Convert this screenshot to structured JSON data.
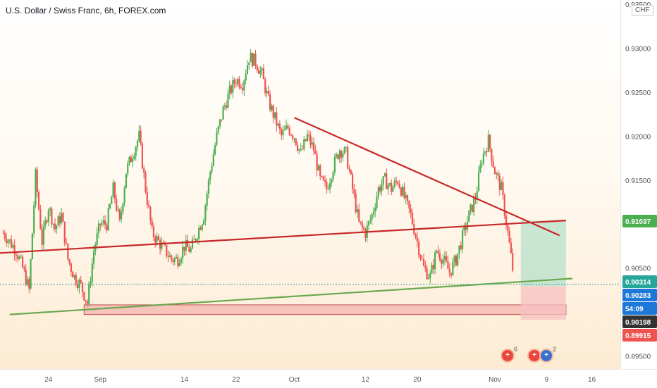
{
  "title": "U.S. Dollar / Swiss Franc, 6h, FOREX.com",
  "currency": "CHF",
  "colors": {
    "up": "#26a69a",
    "up_candle": "#4caf50",
    "down": "#ef5350",
    "trendline_red": "#c62828",
    "trendline_green": "#6aa84f",
    "support_zone": "#f4a5a5",
    "profit_zone": "#bfe3cf",
    "loss_zone": "#f7c0c0"
  },
  "events": [
    {
      "icon": "flag-swiss-icon",
      "count": "6"
    },
    {
      "icon": "flag-swiss-icon",
      "count": ""
    },
    {
      "icon": "flag-us-icon",
      "count": "2"
    }
  ],
  "chart_data": {
    "type": "candlestick",
    "title": "U.S. Dollar / Swiss Franc, 6h, FOREX.com",
    "ylim": [
      0.8935,
      0.9355
    ],
    "y_ticks": [
      "0.89500",
      "0.90500",
      "0.91500",
      "0.92000",
      "0.92500",
      "0.93000",
      "0.93500"
    ],
    "x_ticks": [
      {
        "label": "24",
        "day": 24
      },
      {
        "label": "Sep",
        "day": 32
      },
      {
        "label": "14",
        "day": 45
      },
      {
        "label": "22",
        "day": 53
      },
      {
        "label": "Oct",
        "day": 62
      },
      {
        "label": "12",
        "day": 73
      },
      {
        "label": "20",
        "day": 81
      },
      {
        "label": "Nov",
        "day": 93
      },
      {
        "label": "9",
        "day": 101
      },
      {
        "label": "16",
        "day": 108
      }
    ],
    "x_range_days": [
      16.5,
      112.4
    ],
    "price_labels": [
      {
        "value": "0.91037",
        "kind": "target"
      },
      {
        "value": "0.90314",
        "kind": "last"
      },
      {
        "value": "0.90283",
        "kind": "current"
      },
      {
        "value": "54:09",
        "kind": "countdown"
      },
      {
        "value": "0.90198",
        "kind": "dark"
      },
      {
        "value": "0.89915",
        "kind": "stop"
      }
    ],
    "trendlines": [
      {
        "name": "descending resistance",
        "color": "red",
        "points": [
          [
            62,
            0.9221
          ],
          [
            103,
            0.9087
          ]
        ]
      },
      {
        "name": "rising support (red)",
        "color": "red",
        "points": [
          [
            16.5,
            0.9067
          ],
          [
            104,
            0.9104
          ]
        ]
      },
      {
        "name": "rising support (green)",
        "color": "green",
        "points": [
          [
            18,
            0.8997
          ],
          [
            105,
            0.9038
          ]
        ]
      }
    ],
    "zones": [
      {
        "name": "support zone",
        "day_range": [
          29.5,
          104
        ],
        "price_range": [
          0.8997,
          0.9008
        ]
      },
      {
        "name": "profit zone",
        "day_range": [
          97,
          104
        ],
        "price_range": [
          0.9029,
          0.9104
        ]
      },
      {
        "name": "loss zone",
        "day_range": [
          97,
          104
        ],
        "price_range": [
          0.8991,
          0.9029
        ]
      }
    ],
    "last_price": 0.90314,
    "series": [
      {
        "d": 17,
        "c": 0.909
      },
      {
        "d": 19,
        "c": 0.907
      },
      {
        "d": 20,
        "c": 0.905
      },
      {
        "d": 21,
        "c": 0.9025
      },
      {
        "d": 22,
        "c": 0.9155
      },
      {
        "d": 23,
        "c": 0.908
      },
      {
        "d": 24,
        "c": 0.912
      },
      {
        "d": 25,
        "c": 0.9095
      },
      {
        "d": 26,
        "c": 0.911
      },
      {
        "d": 27,
        "c": 0.906
      },
      {
        "d": 28,
        "c": 0.904
      },
      {
        "d": 29,
        "c": 0.903
      },
      {
        "d": 30,
        "c": 0.901
      },
      {
        "d": 31,
        "c": 0.907
      },
      {
        "d": 32,
        "c": 0.91
      },
      {
        "d": 33,
        "c": 0.91
      },
      {
        "d": 34,
        "c": 0.914
      },
      {
        "d": 35,
        "c": 0.91
      },
      {
        "d": 36,
        "c": 0.916
      },
      {
        "d": 37,
        "c": 0.918
      },
      {
        "d": 38,
        "c": 0.92
      },
      {
        "d": 39,
        "c": 0.914
      },
      {
        "d": 40,
        "c": 0.909
      },
      {
        "d": 41,
        "c": 0.908
      },
      {
        "d": 42,
        "c": 0.907
      },
      {
        "d": 43,
        "c": 0.906
      },
      {
        "d": 44,
        "c": 0.906
      },
      {
        "d": 45,
        "c": 0.9075
      },
      {
        "d": 46,
        "c": 0.907
      },
      {
        "d": 47,
        "c": 0.909
      },
      {
        "d": 48,
        "c": 0.911
      },
      {
        "d": 49,
        "c": 0.916
      },
      {
        "d": 50,
        "c": 0.92
      },
      {
        "d": 51,
        "c": 0.923
      },
      {
        "d": 52,
        "c": 0.925
      },
      {
        "d": 53,
        "c": 0.9265
      },
      {
        "d": 54,
        "c": 0.926
      },
      {
        "d": 55,
        "c": 0.929
      },
      {
        "d": 56,
        "c": 0.9285
      },
      {
        "d": 57,
        "c": 0.927
      },
      {
        "d": 58,
        "c": 0.924
      },
      {
        "d": 59,
        "c": 0.922
      },
      {
        "d": 60,
        "c": 0.92
      },
      {
        "d": 61,
        "c": 0.921
      },
      {
        "d": 62,
        "c": 0.92
      },
      {
        "d": 63,
        "c": 0.918
      },
      {
        "d": 64,
        "c": 0.92
      },
      {
        "d": 65,
        "c": 0.9185
      },
      {
        "d": 66,
        "c": 0.915
      },
      {
        "d": 67,
        "c": 0.914
      },
      {
        "d": 68,
        "c": 0.9165
      },
      {
        "d": 69,
        "c": 0.9185
      },
      {
        "d": 70,
        "c": 0.918
      },
      {
        "d": 71,
        "c": 0.914
      },
      {
        "d": 72,
        "c": 0.91
      },
      {
        "d": 73,
        "c": 0.909
      },
      {
        "d": 74,
        "c": 0.911
      },
      {
        "d": 75,
        "c": 0.914
      },
      {
        "d": 76,
        "c": 0.915
      },
      {
        "d": 77,
        "c": 0.914
      },
      {
        "d": 78,
        "c": 0.915
      },
      {
        "d": 79,
        "c": 0.913
      },
      {
        "d": 80,
        "c": 0.911
      },
      {
        "d": 81,
        "c": 0.908
      },
      {
        "d": 82,
        "c": 0.905
      },
      {
        "d": 83,
        "c": 0.904
      },
      {
        "d": 84,
        "c": 0.907
      },
      {
        "d": 85,
        "c": 0.906
      },
      {
        "d": 86,
        "c": 0.9045
      },
      {
        "d": 87,
        "c": 0.906
      },
      {
        "d": 88,
        "c": 0.9085
      },
      {
        "d": 89,
        "c": 0.911
      },
      {
        "d": 90,
        "c": 0.913
      },
      {
        "d": 91,
        "c": 0.9175
      },
      {
        "d": 92,
        "c": 0.9195
      },
      {
        "d": 93,
        "c": 0.916
      },
      {
        "d": 94,
        "c": 0.914
      },
      {
        "d": 95,
        "c": 0.909
      },
      {
        "d": 96,
        "c": 0.9035
      }
    ]
  }
}
